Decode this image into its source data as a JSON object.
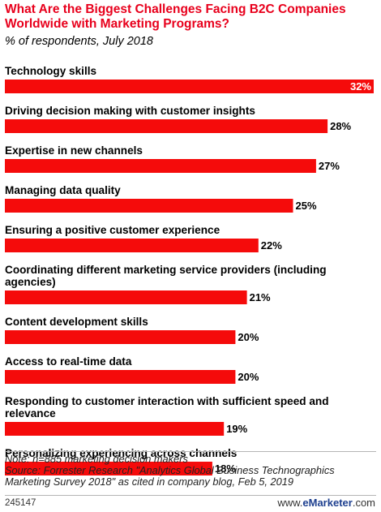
{
  "chart_data": {
    "type": "bar",
    "orientation": "horizontal",
    "title": "What Are the Biggest Challenges Facing B2C Companies Worldwide with Marketing Programs?",
    "subtitle": "% of respondents, July 2018",
    "categories": [
      "Technology skills",
      "Driving decision making with customer insights",
      "Expertise in new channels",
      "Managing data quality",
      "Ensuring a positive customer experience",
      "Coordinating different marketing service providers (including agencies)",
      "Content development skills",
      "Access to real-time data",
      "Responding to customer interaction with sufficient speed and relevance",
      "Personalizing experiencing across channels"
    ],
    "values": [
      32,
      28,
      27,
      25,
      22,
      21,
      20,
      20,
      19,
      18
    ],
    "value_labels": [
      "32%",
      "28%",
      "27%",
      "25%",
      "22%",
      "21%",
      "20%",
      "20%",
      "19%",
      "18%"
    ],
    "bar_color": "#f50b0b",
    "title_color": "#e8001c"
  },
  "footer": {
    "note": "Note: n=885 marketing decision makers",
    "source_line1": "Source: Forrester Research \"Analytics Global Business Technographics",
    "source_line2": "Marketing Survey 2018\" as cited in company blog, Feb 5, 2019",
    "chart_id": "245147",
    "brand_prefix": "www.",
    "brand_name": "eMarketer",
    "brand_suffix": ".com",
    "brand_color": "#1d3f8f"
  }
}
